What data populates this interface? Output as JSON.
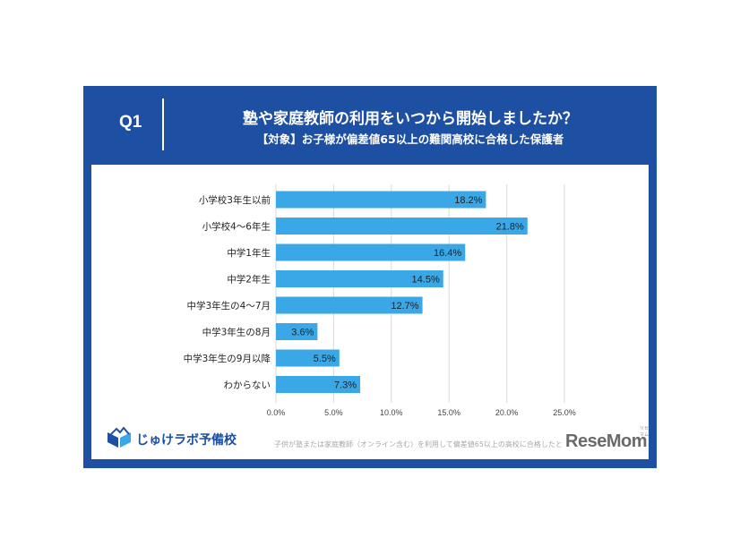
{
  "header": {
    "q_label": "Q1",
    "title": "塾や家庭教師の利用をいつから開始しましたか？",
    "subtitle": "【対象】お子様が偏差値65以上の難関高校に合格した保護者"
  },
  "chart_data": {
    "type": "bar",
    "orientation": "horizontal",
    "categories": [
      "小学校3年生以前",
      "小学校4～6年生",
      "中学1年生",
      "中学2年生",
      "中学3年生の4～7月",
      "中学3年生の8月",
      "中学3年生の9月以降",
      "わからない"
    ],
    "values": [
      18.2,
      21.8,
      16.4,
      14.5,
      12.7,
      3.6,
      5.5,
      7.3
    ],
    "value_labels": [
      "18.2%",
      "21.8%",
      "16.4%",
      "14.5%",
      "12.7%",
      "3.6%",
      "5.5%",
      "7.3%"
    ],
    "xlim": [
      0,
      25
    ],
    "xticks": [
      0,
      5,
      10,
      15,
      20,
      25
    ],
    "xtick_labels": [
      "0.0%",
      "5.0%",
      "10.0%",
      "15.0%",
      "20.0%",
      "25.0%"
    ],
    "grid": true,
    "legend": "none",
    "bar_color": "#3aa7e6"
  },
  "colors": {
    "frame": "#1d4fa3",
    "bar": "#3aa7e6",
    "grid": "#d9d9d9"
  },
  "footer": {
    "logo_text": "じゅけラボ予備校",
    "logo_icon": "book-mountain-icon",
    "footnote": "子供が塾または家庭教師（オンライン含む）を利用して偏差値65以上の高校に合格したと",
    "watermark": "ReseMom",
    "watermark_small": "リセマム"
  }
}
